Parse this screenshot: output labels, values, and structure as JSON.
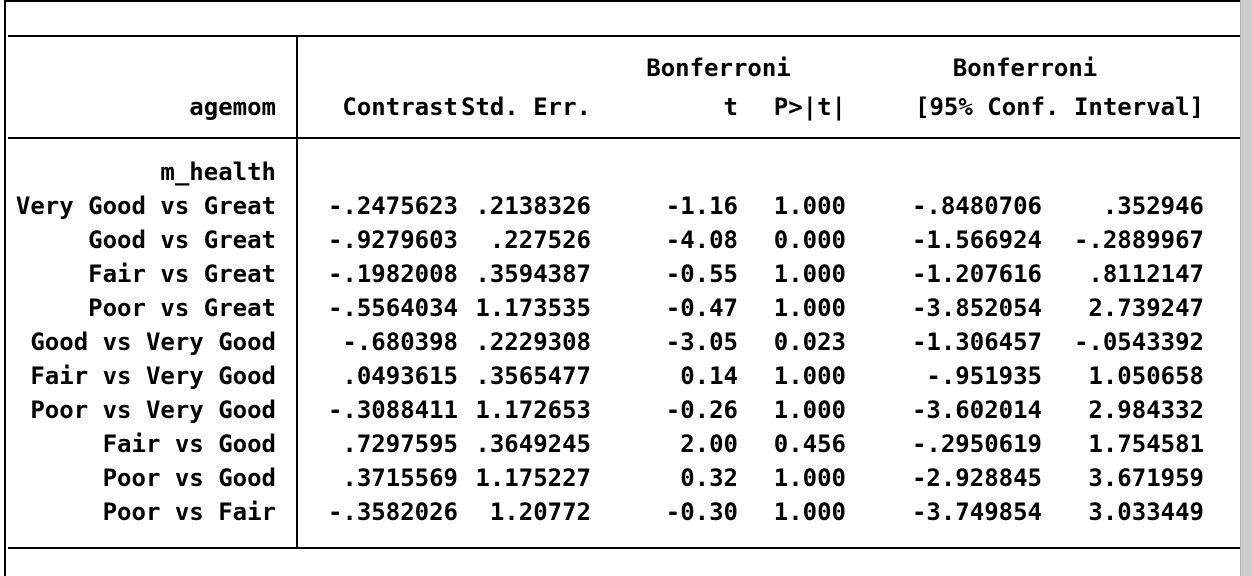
{
  "table": {
    "header": {
      "row_group_label": "agemom",
      "bonferroni_label_1": "Bonferroni",
      "bonferroni_label_2": "Bonferroni",
      "col_contrast": "Contrast",
      "col_stderr": "Std. Err.",
      "col_t": "t",
      "col_p": "P>|t|",
      "col_ci": "[95% Conf. Interval]"
    },
    "group_label": "m_health",
    "rows": [
      {
        "label": "Very Good vs Great",
        "contrast": "-.2475623",
        "stderr": ".2138326",
        "t": "-1.16",
        "p": "1.000",
        "ci_low": "-.8480706",
        "ci_high": ".352946"
      },
      {
        "label": "Good vs Great",
        "contrast": "-.9279603",
        "stderr": ".227526",
        "t": "-4.08",
        "p": "0.000",
        "ci_low": "-1.566924",
        "ci_high": "-.2889967"
      },
      {
        "label": "Fair vs Great",
        "contrast": "-.1982008",
        "stderr": ".3594387",
        "t": "-0.55",
        "p": "1.000",
        "ci_low": "-1.207616",
        "ci_high": ".8112147"
      },
      {
        "label": "Poor vs Great",
        "contrast": "-.5564034",
        "stderr": "1.173535",
        "t": "-0.47",
        "p": "1.000",
        "ci_low": "-3.852054",
        "ci_high": "2.739247"
      },
      {
        "label": "Good vs Very Good",
        "contrast": "-.680398",
        "stderr": ".2229308",
        "t": "-3.05",
        "p": "0.023",
        "ci_low": "-1.306457",
        "ci_high": "-.0543392"
      },
      {
        "label": "Fair vs Very Good",
        "contrast": ".0493615",
        "stderr": ".3565477",
        "t": "0.14",
        "p": "1.000",
        "ci_low": "-.951935",
        "ci_high": "1.050658"
      },
      {
        "label": "Poor vs Very Good",
        "contrast": "-.3088411",
        "stderr": "1.172653",
        "t": "-0.26",
        "p": "1.000",
        "ci_low": "-3.602014",
        "ci_high": "2.984332"
      },
      {
        "label": "Fair vs Good",
        "contrast": ".7297595",
        "stderr": ".3649245",
        "t": "2.00",
        "p": "0.456",
        "ci_low": "-.2950619",
        "ci_high": "1.754581"
      },
      {
        "label": "Poor vs Good",
        "contrast": ".3715569",
        "stderr": "1.175227",
        "t": "0.32",
        "p": "1.000",
        "ci_low": "-2.928845",
        "ci_high": "3.671959"
      },
      {
        "label": "Poor vs Fair",
        "contrast": "-.3582026",
        "stderr": "1.20772",
        "t": "-0.30",
        "p": "1.000",
        "ci_low": "-3.749854",
        "ci_high": "3.033449"
      }
    ]
  },
  "colors": {
    "text": "#000000",
    "rules": "#000000",
    "background": "#ffffff",
    "window_border": "#000000",
    "scrollbar_track": "#cdcdcd"
  }
}
